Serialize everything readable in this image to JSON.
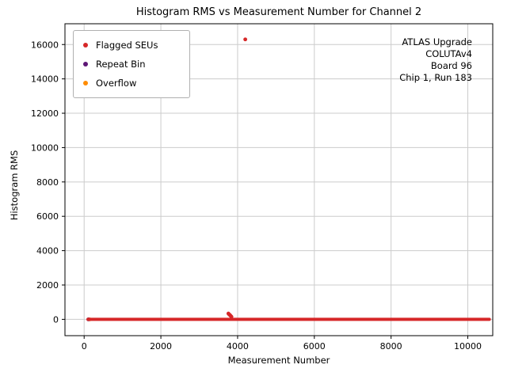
{
  "figure": {
    "title": "Histogram RMS vs Measurement Number for Channel 2",
    "annotation_lines": [
      "ATLAS Upgrade",
      "COLUTAv4",
      "Board 96",
      "Chip 1, Run 183"
    ]
  },
  "chart_data": {
    "type": "scatter",
    "title": "Histogram RMS vs Measurement Number for Channel 2",
    "xlabel": "Measurement Number",
    "ylabel": "Histogram RMS",
    "xlim": [
      -500,
      10650
    ],
    "ylim": [
      -950,
      17210
    ],
    "x_ticks": [
      0,
      2000,
      4000,
      6000,
      8000,
      10000
    ],
    "y_ticks": [
      0,
      2000,
      4000,
      6000,
      8000,
      10000,
      12000,
      14000,
      16000
    ],
    "grid": true,
    "legend_position": "upper left",
    "series": [
      {
        "name": "Flagged SEUs",
        "color": "#d62728",
        "marker_size": 2.4,
        "baseline": {
          "x_start": 100,
          "x_end": 10560,
          "y": 0
        },
        "points": [
          [
            4200,
            16300
          ],
          [
            3760,
            340
          ],
          [
            3780,
            290
          ],
          [
            3800,
            250
          ],
          [
            3820,
            200
          ],
          [
            3840,
            150
          ]
        ]
      },
      {
        "name": "Repeat Bin",
        "color": "#5e1675",
        "marker_size": 2.4,
        "points": [
          [
            110,
            0
          ]
        ]
      },
      {
        "name": "Overflow",
        "color": "#ff8c00",
        "marker_size": 2.4,
        "points": [
          [
            140,
            0
          ]
        ]
      }
    ]
  }
}
